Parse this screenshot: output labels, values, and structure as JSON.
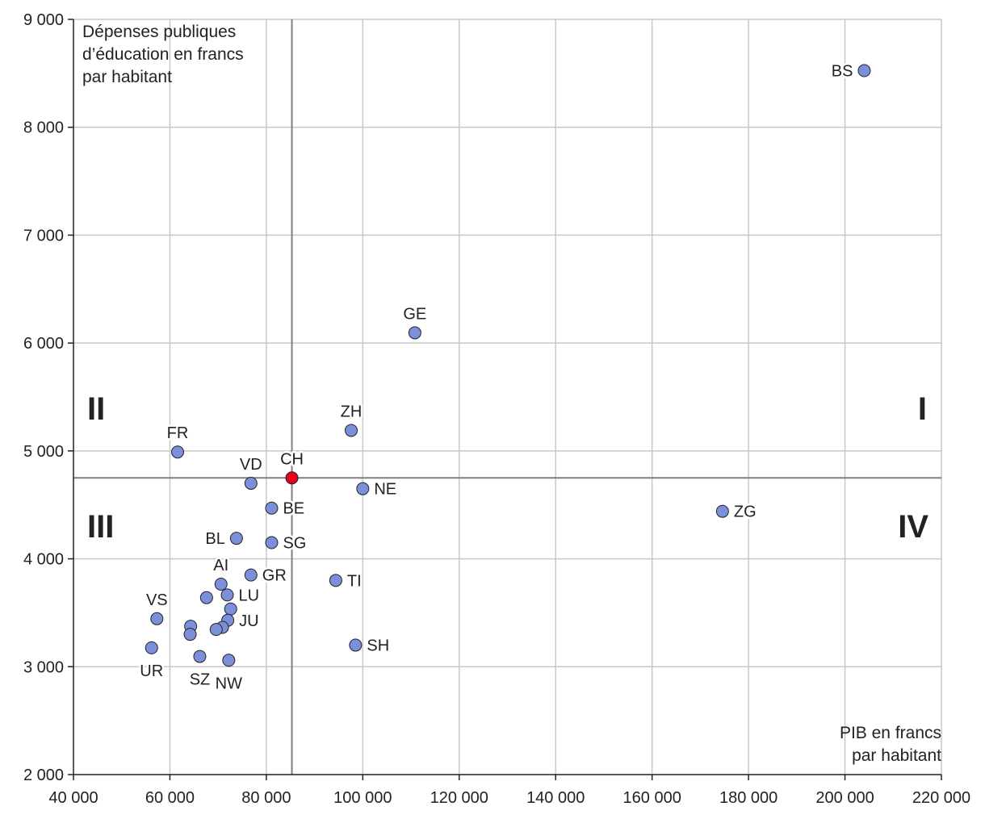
{
  "chart_data": {
    "type": "scatter",
    "x_axis_title": [
      "PIB en francs",
      "par habitant"
    ],
    "y_axis_title": [
      "Dépenses publiques",
      "d’éducation en francs",
      "par habitant"
    ],
    "xlim": [
      40000,
      220000
    ],
    "ylim": [
      2000,
      9000
    ],
    "x_ticks": [
      40000,
      60000,
      80000,
      100000,
      120000,
      140000,
      160000,
      180000,
      200000,
      220000
    ],
    "y_ticks": [
      2000,
      3000,
      4000,
      5000,
      6000,
      7000,
      8000,
      9000
    ],
    "x_tick_labels": [
      "40 000",
      "60 000",
      "80 000",
      "100 000",
      "120 000",
      "140 000",
      "160 000",
      "180 000",
      "200 000",
      "220 000"
    ],
    "y_tick_labels": [
      "2 000",
      "3 000",
      "4 000",
      "5 000",
      "6 000",
      "7 000",
      "8 000",
      "9 000"
    ],
    "grid": true,
    "reference_lines": {
      "x": 85300,
      "y": 4750
    },
    "quadrants": [
      {
        "label": "I",
        "position": "top-right"
      },
      {
        "label": "II",
        "position": "top-left"
      },
      {
        "label": "III",
        "position": "bottom-left"
      },
      {
        "label": "IV",
        "position": "bottom-right"
      }
    ],
    "colors": {
      "point": "#7b8fdb",
      "highlight": "#e8001c",
      "grid": "#c8c8c8",
      "reference": "#808080"
    },
    "points": [
      {
        "label": "BS",
        "x": 204000,
        "y": 8525,
        "label_side": "left"
      },
      {
        "label": "GE",
        "x": 110800,
        "y": 6095,
        "label_side": "top"
      },
      {
        "label": "ZH",
        "x": 97600,
        "y": 5190,
        "label_side": "top"
      },
      {
        "label": "FR",
        "x": 61600,
        "y": 4990,
        "label_side": "top"
      },
      {
        "label": "CH",
        "x": 85300,
        "y": 4750,
        "label_side": "top",
        "highlight": true
      },
      {
        "label": "VD",
        "x": 76800,
        "y": 4700,
        "label_side": "top"
      },
      {
        "label": "NE",
        "x": 100000,
        "y": 4650,
        "label_side": "right"
      },
      {
        "label": "BE",
        "x": 81100,
        "y": 4470,
        "label_side": "right"
      },
      {
        "label": "ZG",
        "x": 174600,
        "y": 4440,
        "label_side": "right"
      },
      {
        "label": "BL",
        "x": 73800,
        "y": 4190,
        "label_side": "left"
      },
      {
        "label": "SG",
        "x": 81100,
        "y": 4150,
        "label_side": "right"
      },
      {
        "label": "GR",
        "x": 76800,
        "y": 3850,
        "label_side": "right"
      },
      {
        "label": "TI",
        "x": 94400,
        "y": 3800,
        "label_side": "right"
      },
      {
        "label": "AI",
        "x": 70600,
        "y": 3765,
        "label_side": "top"
      },
      {
        "label": "LU",
        "x": 71900,
        "y": 3665,
        "label_side": "right"
      },
      {
        "label": "",
        "x": 67600,
        "y": 3640
      },
      {
        "label": "",
        "x": 72600,
        "y": 3535
      },
      {
        "label": "VS",
        "x": 57300,
        "y": 3445,
        "label_side": "top"
      },
      {
        "label": "JU",
        "x": 72000,
        "y": 3430,
        "label_side": "right"
      },
      {
        "label": "",
        "x": 64300,
        "y": 3375
      },
      {
        "label": "",
        "x": 70900,
        "y": 3365
      },
      {
        "label": "",
        "x": 69600,
        "y": 3345
      },
      {
        "label": "",
        "x": 64200,
        "y": 3300
      },
      {
        "label": "SH",
        "x": 98500,
        "y": 3200,
        "label_side": "right"
      },
      {
        "label": "UR",
        "x": 56200,
        "y": 3175,
        "label_side": "bottom"
      },
      {
        "label": "SZ",
        "x": 66200,
        "y": 3095,
        "label_side": "bottom"
      },
      {
        "label": "NW",
        "x": 72200,
        "y": 3060,
        "label_side": "bottom"
      }
    ]
  }
}
